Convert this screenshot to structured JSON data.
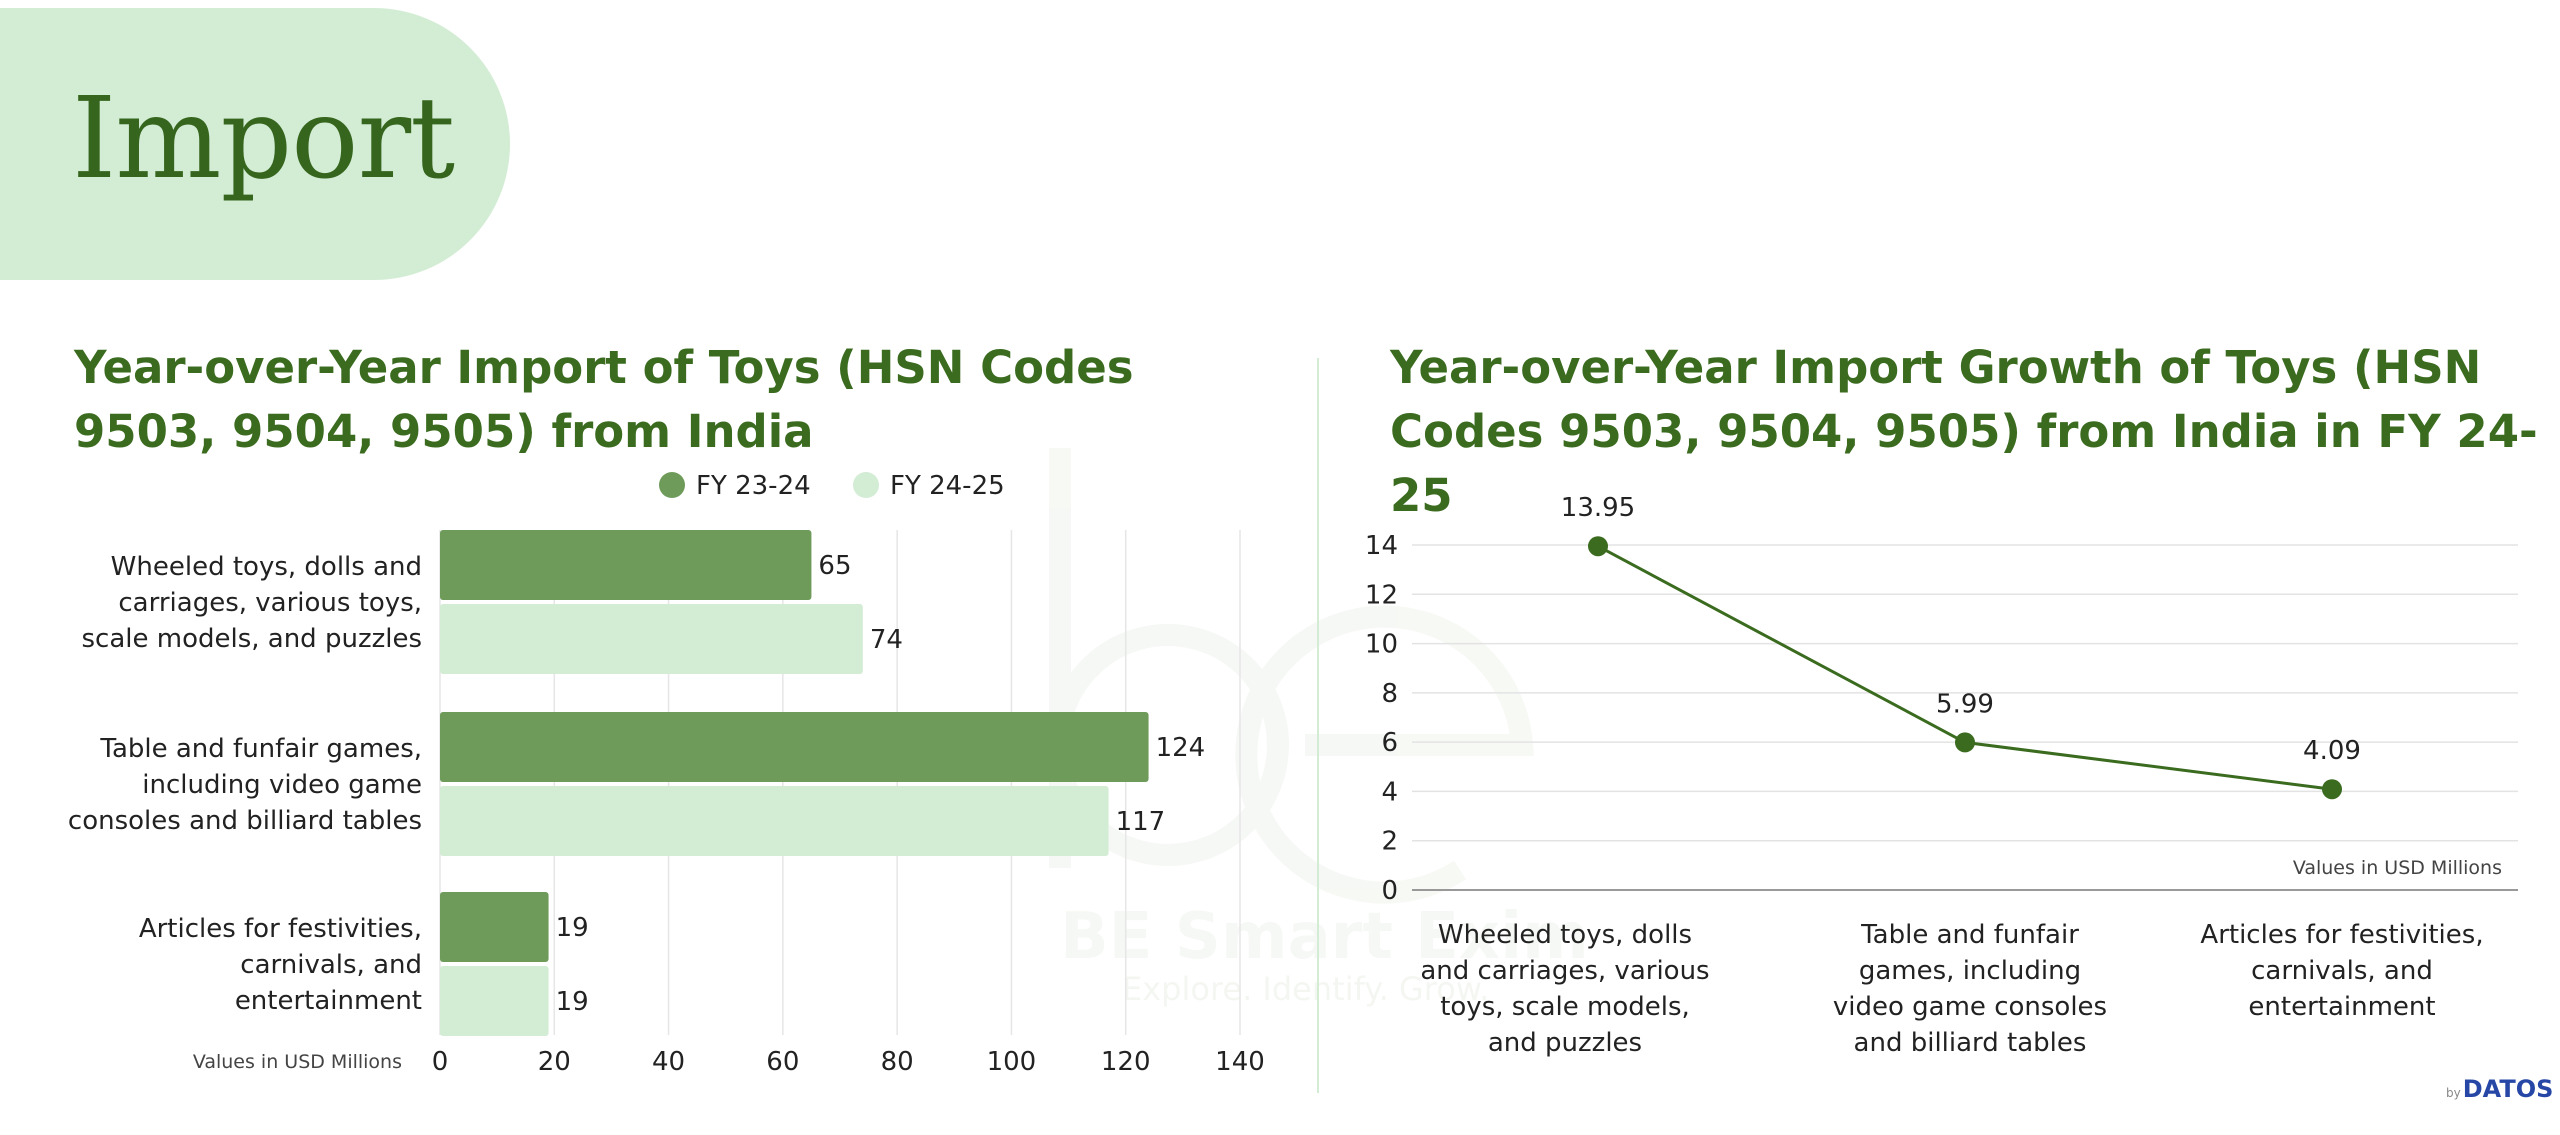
{
  "page": {
    "heading": "Import"
  },
  "watermark": {
    "mark": "be",
    "name": "BE Smart Exim",
    "tagline": "Explore. Identify. Grow."
  },
  "footer": {
    "logo_prefix": "by",
    "logo_name": "DATOS"
  },
  "colors": {
    "fy2324": "#6e9b5a",
    "fy2425": "#d3ecd4",
    "title": "#3a6b1f",
    "line": "#3a6b1f"
  },
  "chart_data": [
    {
      "type": "bar",
      "orientation": "horizontal",
      "title": "Year-over-Year Import of Toys (HSN Codes 9503, 9504, 9505) from India",
      "categories": [
        [
          "Wheeled toys, dolls and",
          "carriages, various toys,",
          "scale models, and puzzles"
        ],
        [
          "Table and funfair games,",
          "including video game",
          "consoles and billiard tables"
        ],
        [
          "Articles for festivities,",
          "carnivals, and",
          "entertainment"
        ]
      ],
      "series": [
        {
          "name": "FY 23-24",
          "values": [
            65,
            124,
            19
          ]
        },
        {
          "name": "FY 24-25",
          "values": [
            74,
            117,
            19
          ]
        }
      ],
      "xlim": [
        0,
        140
      ],
      "xticks": [
        "0",
        "20",
        "40",
        "60",
        "80",
        "100",
        "120",
        "140"
      ],
      "legend_position": "top-center",
      "note": "Values in USD Millions",
      "grid": true
    },
    {
      "type": "line",
      "title": "Year-over-Year Import Growth of Toys (HSN Codes 9503, 9504, 9505) from India in FY 24-25",
      "categories": [
        [
          "Wheeled toys, dolls",
          "and carriages, various",
          "toys, scale models,",
          "and puzzles"
        ],
        [
          "Table and funfair",
          "games, including",
          "video game consoles",
          "and billiard tables"
        ],
        [
          "Articles for festivities,",
          "carnivals, and",
          "entertainment"
        ]
      ],
      "values": [
        13.95,
        5.99,
        4.09
      ],
      "value_labels": [
        "13.95",
        "5.99",
        "4.09"
      ],
      "ylim": [
        0,
        14
      ],
      "yticks": [
        "0",
        "2",
        "4",
        "6",
        "8",
        "10",
        "12",
        "14"
      ],
      "note": "Values in USD Millions",
      "grid": true
    }
  ]
}
